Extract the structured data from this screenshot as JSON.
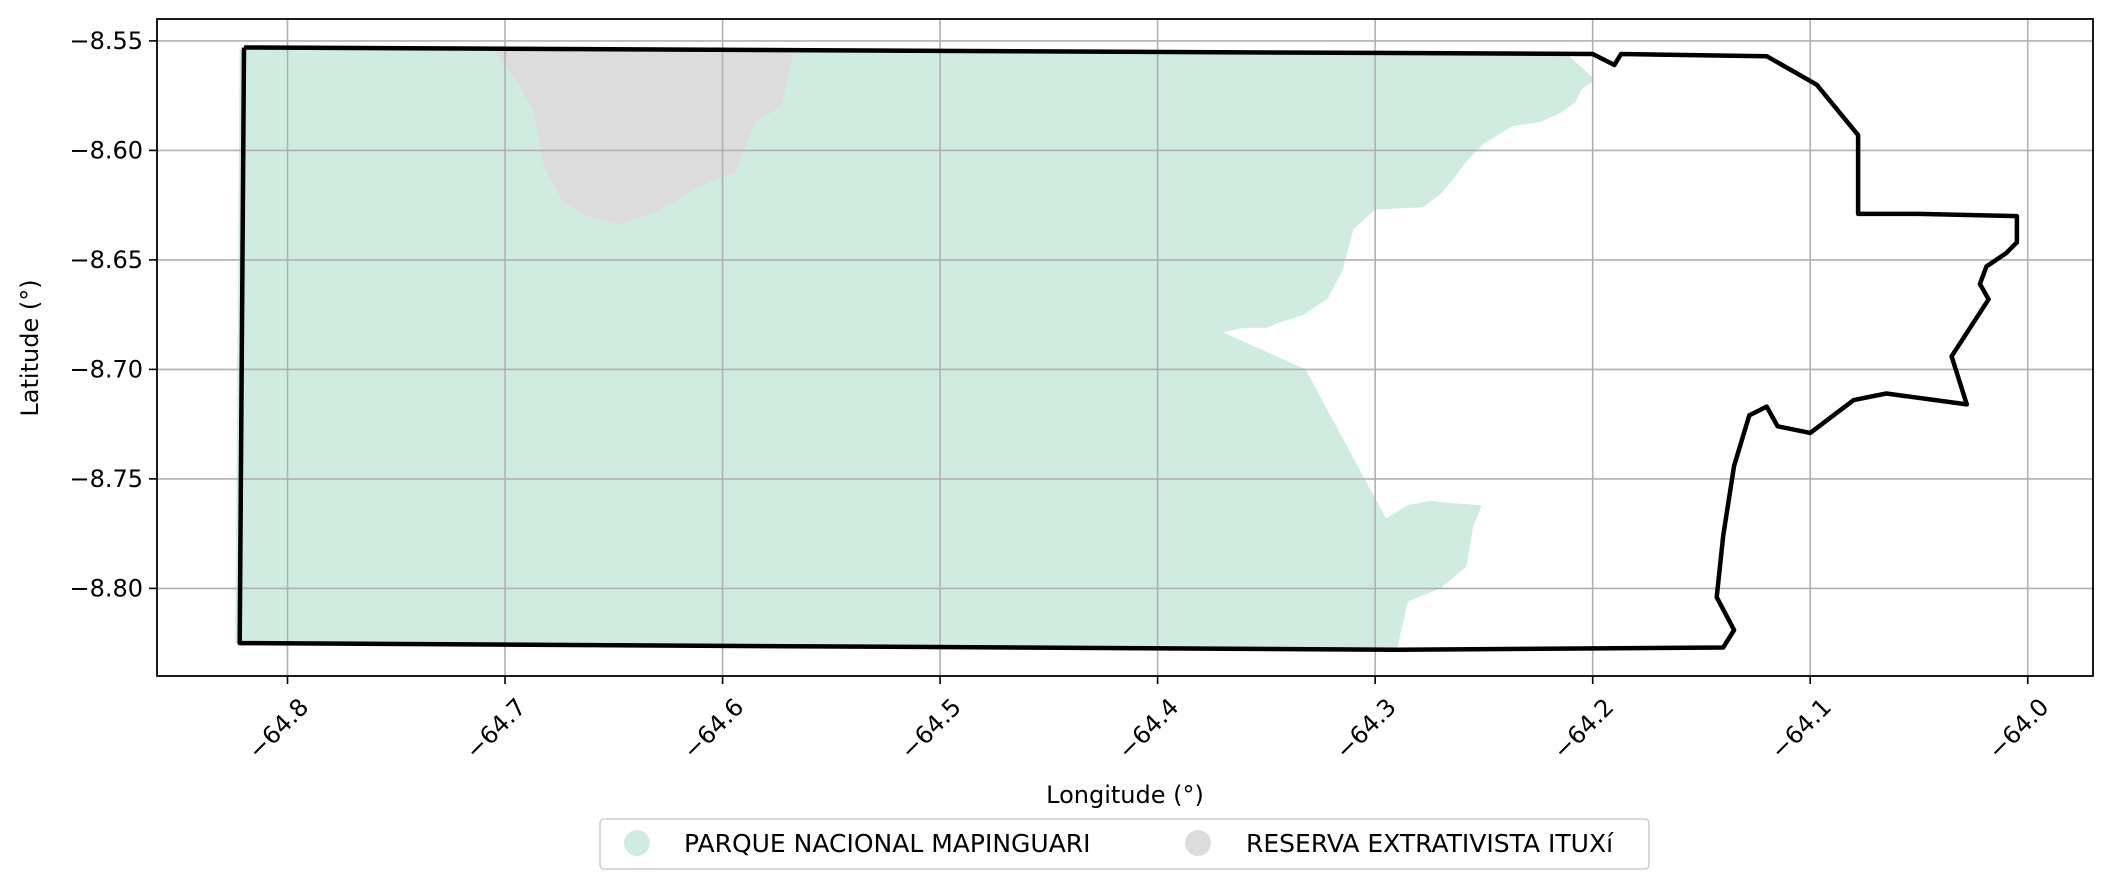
{
  "chart_data": {
    "type": "map",
    "xlabel": "Longitude (°)",
    "ylabel": "Latitude (°)",
    "xlim": [
      -64.86,
      -63.97
    ],
    "ylim": [
      -8.84,
      -8.54
    ],
    "grid": true,
    "legend_placement": "bottom-center",
    "x_ticks": [
      {
        "value": -64.8,
        "label": "−64.8"
      },
      {
        "value": -64.7,
        "label": "−64.7"
      },
      {
        "value": -64.6,
        "label": "−64.6"
      },
      {
        "value": -64.5,
        "label": "−64.5"
      },
      {
        "value": -64.4,
        "label": "−64.4"
      },
      {
        "value": -64.3,
        "label": "−64.3"
      },
      {
        "value": -64.2,
        "label": "−64.2"
      },
      {
        "value": -64.1,
        "label": "−64.1"
      },
      {
        "value": -64.0,
        "label": "−64.0"
      }
    ],
    "y_ticks": [
      {
        "value": -8.55,
        "label": "−8.55"
      },
      {
        "value": -8.6,
        "label": "−8.60"
      },
      {
        "value": -8.65,
        "label": "−8.65"
      },
      {
        "value": -8.7,
        "label": "−8.70"
      },
      {
        "value": -8.75,
        "label": "−8.75"
      },
      {
        "value": -8.8,
        "label": "−8.80"
      }
    ],
    "areas": [
      {
        "name": "PARQUE NACIONAL MAPINGUARI",
        "color": "#d0ece0",
        "coords": [
          [
            -64.822,
            -8.554
          ],
          [
            -64.212,
            -8.556
          ],
          [
            -64.204,
            -8.563
          ],
          [
            -64.199,
            -8.568
          ],
          [
            -64.205,
            -8.572
          ],
          [
            -64.208,
            -8.578
          ],
          [
            -64.215,
            -8.583
          ],
          [
            -64.224,
            -8.587
          ],
          [
            -64.237,
            -8.589
          ],
          [
            -64.25,
            -8.597
          ],
          [
            -64.258,
            -8.605
          ],
          [
            -64.264,
            -8.613
          ],
          [
            -64.27,
            -8.62
          ],
          [
            -64.278,
            -8.626
          ],
          [
            -64.3,
            -8.627
          ],
          [
            -64.31,
            -8.636
          ],
          [
            -64.315,
            -8.655
          ],
          [
            -64.322,
            -8.668
          ],
          [
            -64.333,
            -8.675
          ],
          [
            -64.345,
            -8.679
          ],
          [
            -64.35,
            -8.681
          ],
          [
            -64.36,
            -8.681
          ],
          [
            -64.37,
            -8.683
          ],
          [
            -64.332,
            -8.7
          ],
          [
            -64.295,
            -8.768
          ],
          [
            -64.285,
            -8.762
          ],
          [
            -64.275,
            -8.76
          ],
          [
            -64.266,
            -8.761
          ],
          [
            -64.251,
            -8.762
          ],
          [
            -64.255,
            -8.772
          ],
          [
            -64.258,
            -8.79
          ],
          [
            -64.27,
            -8.8
          ],
          [
            -64.285,
            -8.806
          ],
          [
            -64.29,
            -8.828
          ],
          [
            -64.824,
            -8.825
          ]
        ]
      },
      {
        "name": "RESERVA EXTRATIVISTA ITUXí",
        "color": "#dcdcdc",
        "coords": [
          [
            -64.705,
            -8.554
          ],
          [
            -64.567,
            -8.554
          ],
          [
            -64.57,
            -8.567
          ],
          [
            -64.573,
            -8.58
          ],
          [
            -64.585,
            -8.587
          ],
          [
            -64.594,
            -8.61
          ],
          [
            -64.612,
            -8.617
          ],
          [
            -64.63,
            -8.628
          ],
          [
            -64.648,
            -8.634
          ],
          [
            -64.662,
            -8.63
          ],
          [
            -64.673,
            -8.624
          ],
          [
            -64.682,
            -8.608
          ],
          [
            -64.687,
            -8.582
          ],
          [
            -64.695,
            -8.568
          ]
        ]
      }
    ],
    "boundary": {
      "color": "#000000",
      "coords": [
        [
          -64.82,
          -8.553
        ],
        [
          -64.2,
          -8.556
        ],
        [
          -64.19,
          -8.561
        ],
        [
          -64.187,
          -8.556
        ],
        [
          -64.12,
          -8.557
        ],
        [
          -64.097,
          -8.57
        ],
        [
          -64.078,
          -8.593
        ],
        [
          -64.078,
          -8.629
        ],
        [
          -64.05,
          -8.629
        ],
        [
          -64.005,
          -8.63
        ],
        [
          -64.005,
          -8.642
        ],
        [
          -64.01,
          -8.647
        ],
        [
          -64.019,
          -8.653
        ],
        [
          -64.022,
          -8.661
        ],
        [
          -64.018,
          -8.668
        ],
        [
          -64.035,
          -8.694
        ],
        [
          -64.028,
          -8.716
        ],
        [
          -64.065,
          -8.711
        ],
        [
          -64.08,
          -8.714
        ],
        [
          -64.1,
          -8.729
        ],
        [
          -64.115,
          -8.726
        ],
        [
          -64.12,
          -8.717
        ],
        [
          -64.128,
          -8.721
        ],
        [
          -64.135,
          -8.744
        ],
        [
          -64.14,
          -8.776
        ],
        [
          -64.143,
          -8.804
        ],
        [
          -64.135,
          -8.819
        ],
        [
          -64.14,
          -8.827
        ],
        [
          -64.29,
          -8.828
        ],
        [
          -64.822,
          -8.825
        ],
        [
          -64.82,
          -8.553
        ]
      ]
    },
    "legend": [
      {
        "label": "PARQUE NACIONAL MAPINGUARI",
        "color": "#d0ece0"
      },
      {
        "label": "RESERVA EXTRATIVISTA ITUXí",
        "color": "#dcdcdc"
      }
    ]
  }
}
